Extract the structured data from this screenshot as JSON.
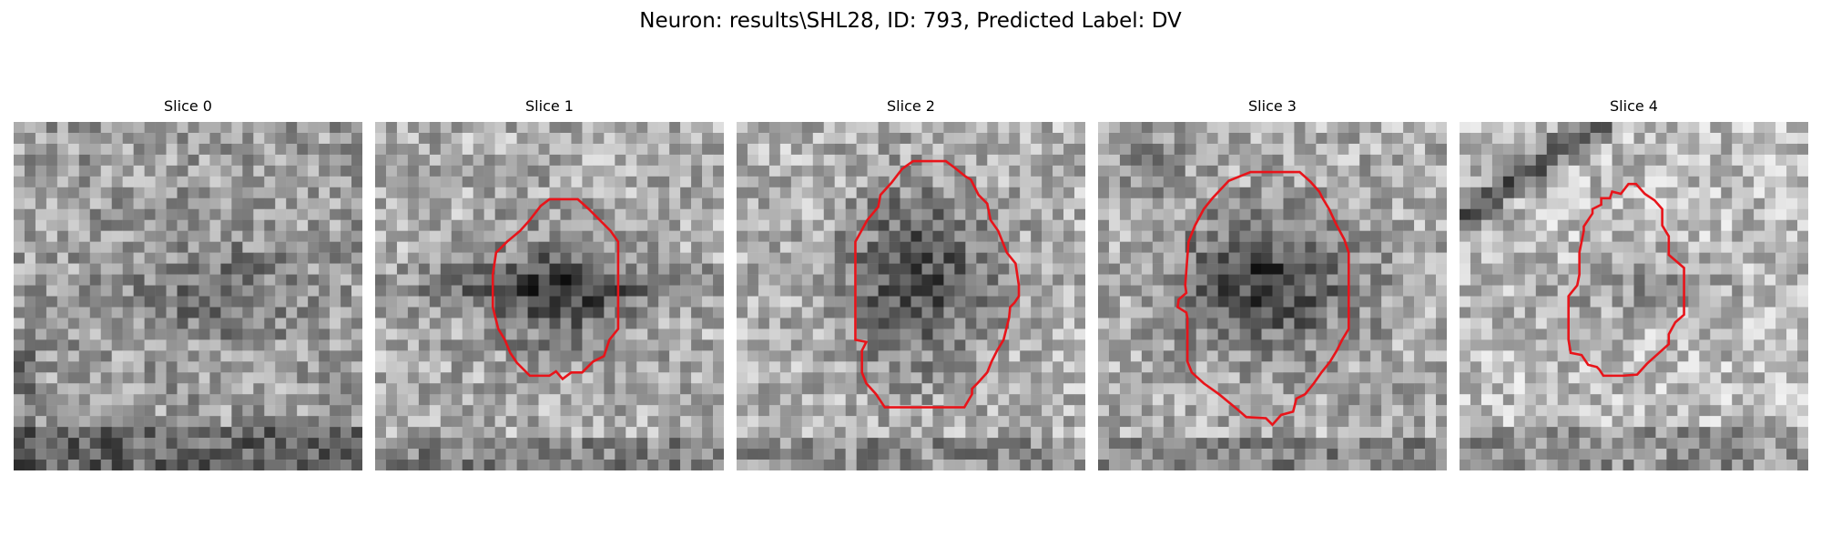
{
  "figure": {
    "title": "Neuron: results\\SHL28, ID: 793, Predicted Label: DV"
  },
  "panels": [
    {
      "title": "Slice 0",
      "has_contour": false
    },
    {
      "title": "Slice 1",
      "has_contour": true
    },
    {
      "title": "Slice 2",
      "has_contour": true
    },
    {
      "title": "Slice 3",
      "has_contour": true
    },
    {
      "title": "Slice 4",
      "has_contour": true
    }
  ],
  "colors": {
    "contour": "#e8141a",
    "pixel_palette": "grayscale"
  }
}
